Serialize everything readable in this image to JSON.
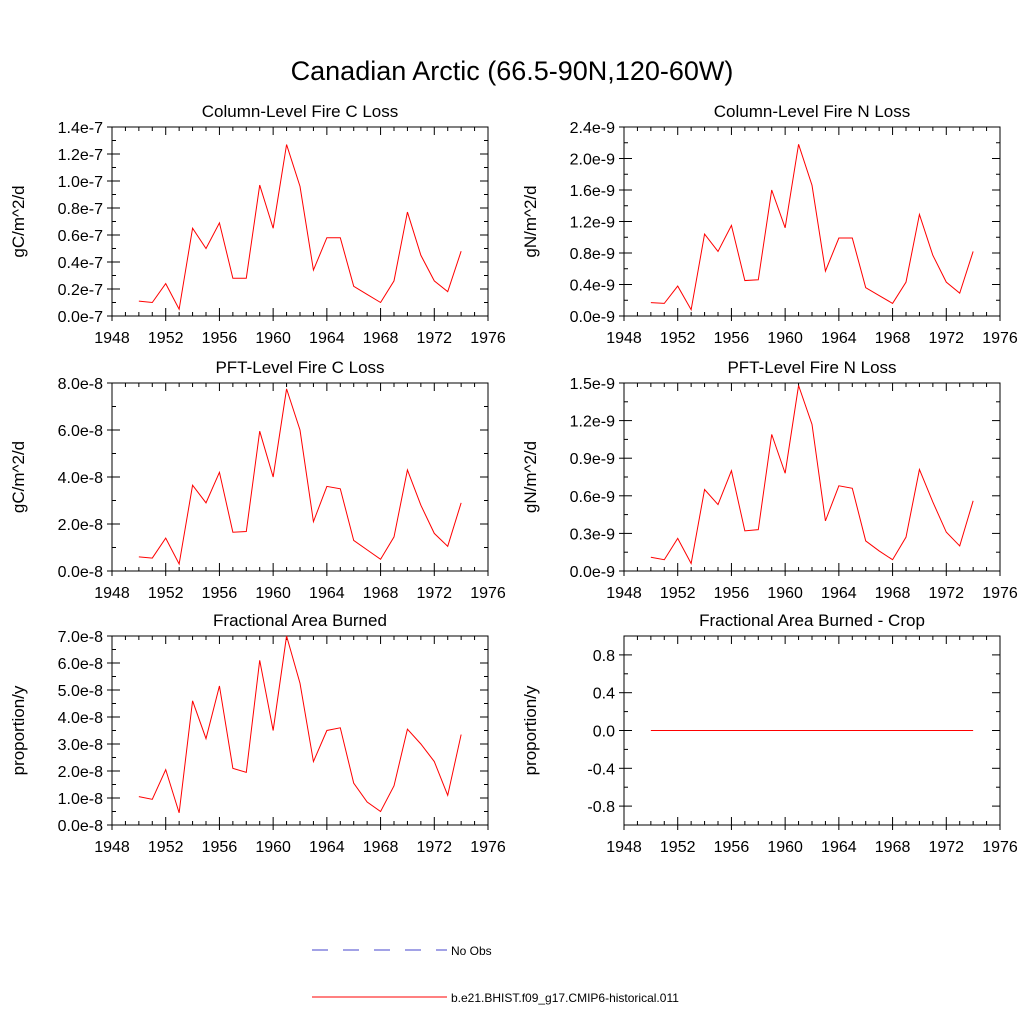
{
  "figure": {
    "title": "Canadian Arctic (66.5-90N,120-60W)"
  },
  "legend": {
    "placement": "bottom-center",
    "entries": [
      {
        "label": "No Obs",
        "color": "#4444cc",
        "style": "dashed"
      },
      {
        "label": "b.e21.BHIST.f09_g17.CMIP6-historical.011",
        "color": "#ff0000",
        "style": "solid"
      }
    ]
  },
  "chart_data": [
    {
      "type": "line",
      "title": "Column-Level Fire C Loss",
      "ylabel": "gC/m^2/d",
      "xlim": [
        1948,
        1976
      ],
      "x_ticks": [
        1948,
        1952,
        1956,
        1960,
        1964,
        1968,
        1972,
        1976
      ],
      "ylim": [
        0,
        1.4e-07
      ],
      "y_ticks": [
        0,
        2e-08,
        4e-08,
        6e-08,
        8e-08,
        1e-07,
        1.2e-07,
        1.4e-07
      ],
      "y_tick_labels": [
        "0.0e-7",
        "0.2e-7",
        "0.4e-7",
        "0.6e-7",
        "0.8e-7",
        "1.0e-7",
        "1.2e-7",
        "1.4e-7"
      ],
      "x": [
        1950,
        1951,
        1952,
        1953,
        1954,
        1955,
        1956,
        1957,
        1958,
        1959,
        1960,
        1961,
        1962,
        1963,
        1964,
        1965,
        1966,
        1967,
        1968,
        1969,
        1970,
        1971,
        1972,
        1973,
        1974
      ],
      "series": [
        {
          "name": "b.e21.BHIST.f09_g17.CMIP6-historical.011",
          "color": "#ff0000",
          "values": [
            1.1e-08,
            1e-08,
            2.4e-08,
            5e-09,
            6.5e-08,
            5e-08,
            6.9e-08,
            2.8e-08,
            2.8e-08,
            9.7e-08,
            6.5e-08,
            1.27e-07,
            9.6e-08,
            3.4e-08,
            5.8e-08,
            5.8e-08,
            2.2e-08,
            1.6e-08,
            1e-08,
            2.6e-08,
            7.7e-08,
            4.5e-08,
            2.6e-08,
            1.8e-08,
            4.8e-08
          ]
        }
      ]
    },
    {
      "type": "line",
      "title": "Column-Level Fire N Loss",
      "ylabel": "gN/m^2/d",
      "xlim": [
        1948,
        1976
      ],
      "x_ticks": [
        1948,
        1952,
        1956,
        1960,
        1964,
        1968,
        1972,
        1976
      ],
      "ylim": [
        0,
        2.4e-09
      ],
      "y_ticks": [
        0,
        4e-10,
        8e-10,
        1.2e-09,
        1.6e-09,
        2e-09,
        2.4e-09
      ],
      "y_tick_labels": [
        "0.0e-9",
        "0.4e-9",
        "0.8e-9",
        "1.2e-9",
        "1.6e-9",
        "2.0e-9",
        "2.4e-9"
      ],
      "x": [
        1950,
        1951,
        1952,
        1953,
        1954,
        1955,
        1956,
        1957,
        1958,
        1959,
        1960,
        1961,
        1962,
        1963,
        1964,
        1965,
        1966,
        1967,
        1968,
        1969,
        1970,
        1971,
        1972,
        1973,
        1974
      ],
      "series": [
        {
          "name": "b.e21.BHIST.f09_g17.CMIP6-historical.011",
          "color": "#ff0000",
          "values": [
            1.7e-10,
            1.6e-10,
            3.8e-10,
            8e-11,
            1.04e-09,
            8.2e-10,
            1.15e-09,
            4.5e-10,
            4.6e-10,
            1.6e-09,
            1.12e-09,
            2.18e-09,
            1.66e-09,
            5.7e-10,
            9.9e-10,
            9.9e-10,
            3.6e-10,
            2.6e-10,
            1.6e-10,
            4.3e-10,
            1.29e-09,
            7.7e-10,
            4.3e-10,
            2.9e-10,
            8.2e-10
          ]
        }
      ]
    },
    {
      "type": "line",
      "title": "PFT-Level Fire C Loss",
      "ylabel": "gC/m^2/d",
      "xlim": [
        1948,
        1976
      ],
      "x_ticks": [
        1948,
        1952,
        1956,
        1960,
        1964,
        1968,
        1972,
        1976
      ],
      "ylim": [
        0,
        8e-08
      ],
      "y_ticks": [
        0,
        2e-08,
        4e-08,
        6e-08,
        8e-08
      ],
      "y_tick_labels": [
        "0.0e-8",
        "2.0e-8",
        "4.0e-8",
        "6.0e-8",
        "8.0e-8"
      ],
      "x": [
        1950,
        1951,
        1952,
        1953,
        1954,
        1955,
        1956,
        1957,
        1958,
        1959,
        1960,
        1961,
        1962,
        1963,
        1964,
        1965,
        1966,
        1967,
        1968,
        1969,
        1970,
        1971,
        1972,
        1973,
        1974
      ],
      "series": [
        {
          "name": "b.e21.BHIST.f09_g17.CMIP6-historical.011",
          "color": "#ff0000",
          "values": [
            6e-09,
            5.5e-09,
            1.4e-08,
            3e-09,
            3.65e-08,
            2.9e-08,
            4.2e-08,
            1.65e-08,
            1.68e-08,
            5.95e-08,
            4e-08,
            7.75e-08,
            6e-08,
            2.1e-08,
            3.6e-08,
            3.5e-08,
            1.3e-08,
            9e-09,
            5e-09,
            1.45e-08,
            4.3e-08,
            2.8e-08,
            1.6e-08,
            1.05e-08,
            2.9e-08
          ]
        }
      ]
    },
    {
      "type": "line",
      "title": "PFT-Level Fire N Loss",
      "ylabel": "gN/m^2/d",
      "xlim": [
        1948,
        1976
      ],
      "x_ticks": [
        1948,
        1952,
        1956,
        1960,
        1964,
        1968,
        1972,
        1976
      ],
      "ylim": [
        0,
        1.5e-09
      ],
      "y_ticks": [
        0,
        3e-10,
        6e-10,
        9e-10,
        1.2e-09,
        1.5e-09
      ],
      "y_tick_labels": [
        "0.0e-9",
        "0.3e-9",
        "0.6e-9",
        "0.9e-9",
        "1.2e-9",
        "1.5e-9"
      ],
      "x": [
        1950,
        1951,
        1952,
        1953,
        1954,
        1955,
        1956,
        1957,
        1958,
        1959,
        1960,
        1961,
        1962,
        1963,
        1964,
        1965,
        1966,
        1967,
        1968,
        1969,
        1970,
        1971,
        1972,
        1973,
        1974
      ],
      "series": [
        {
          "name": "b.e21.BHIST.f09_g17.CMIP6-historical.011",
          "color": "#ff0000",
          "values": [
            1.1e-10,
            9e-11,
            2.6e-10,
            6e-11,
            6.5e-10,
            5.3e-10,
            8e-10,
            3.2e-10,
            3.3e-10,
            1.09e-09,
            7.8e-10,
            1.48e-09,
            1.17e-09,
            4e-10,
            6.8e-10,
            6.6e-10,
            2.4e-10,
            1.6e-10,
            9e-11,
            2.7e-10,
            8.1e-10,
            5.5e-10,
            3.1e-10,
            2e-10,
            5.6e-10
          ]
        }
      ]
    },
    {
      "type": "line",
      "title": "Fractional Area Burned",
      "ylabel": "proportion/y",
      "xlim": [
        1948,
        1976
      ],
      "x_ticks": [
        1948,
        1952,
        1956,
        1960,
        1964,
        1968,
        1972,
        1976
      ],
      "ylim": [
        0,
        7e-08
      ],
      "y_ticks": [
        0,
        1e-08,
        2e-08,
        3e-08,
        4e-08,
        5e-08,
        6e-08,
        7e-08
      ],
      "y_tick_labels": [
        "0.0e-8",
        "1.0e-8",
        "2.0e-8",
        "3.0e-8",
        "4.0e-8",
        "5.0e-8",
        "6.0e-8",
        "7.0e-8"
      ],
      "x": [
        1950,
        1951,
        1952,
        1953,
        1954,
        1955,
        1956,
        1957,
        1958,
        1959,
        1960,
        1961,
        1962,
        1963,
        1964,
        1965,
        1966,
        1967,
        1968,
        1969,
        1970,
        1971,
        1972,
        1973,
        1974
      ],
      "series": [
        {
          "name": "b.e21.BHIST.f09_g17.CMIP6-historical.011",
          "color": "#ff0000",
          "values": [
            1.05e-08,
            9.5e-09,
            2.05e-08,
            4.5e-09,
            4.6e-08,
            3.2e-08,
            5.15e-08,
            2.1e-08,
            1.95e-08,
            6.1e-08,
            3.5e-08,
            7e-08,
            5.25e-08,
            2.35e-08,
            3.5e-08,
            3.6e-08,
            1.55e-08,
            8.5e-09,
            5e-09,
            1.45e-08,
            3.55e-08,
            3e-08,
            2.35e-08,
            1.1e-08,
            3.35e-08
          ]
        }
      ]
    },
    {
      "type": "line",
      "title": "Fractional Area Burned - Crop",
      "ylabel": "proportion/y",
      "xlim": [
        1948,
        1976
      ],
      "x_ticks": [
        1948,
        1952,
        1956,
        1960,
        1964,
        1968,
        1972,
        1976
      ],
      "ylim": [
        -1,
        1
      ],
      "y_ticks": [
        -0.8,
        -0.4,
        0,
        0.4,
        0.8
      ],
      "y_tick_labels": [
        "-0.8",
        "-0.4",
        "0.0",
        "0.4",
        "0.8"
      ],
      "x": [
        1950,
        1951,
        1952,
        1953,
        1954,
        1955,
        1956,
        1957,
        1958,
        1959,
        1960,
        1961,
        1962,
        1963,
        1964,
        1965,
        1966,
        1967,
        1968,
        1969,
        1970,
        1971,
        1972,
        1973,
        1974
      ],
      "series": [
        {
          "name": "b.e21.BHIST.f09_g17.CMIP6-historical.011",
          "color": "#ff0000",
          "values": [
            0,
            0,
            0,
            0,
            0,
            0,
            0,
            0,
            0,
            0,
            0,
            0,
            0,
            0,
            0,
            0,
            0,
            0,
            0,
            0,
            0,
            0,
            0,
            0,
            0
          ]
        }
      ]
    }
  ]
}
